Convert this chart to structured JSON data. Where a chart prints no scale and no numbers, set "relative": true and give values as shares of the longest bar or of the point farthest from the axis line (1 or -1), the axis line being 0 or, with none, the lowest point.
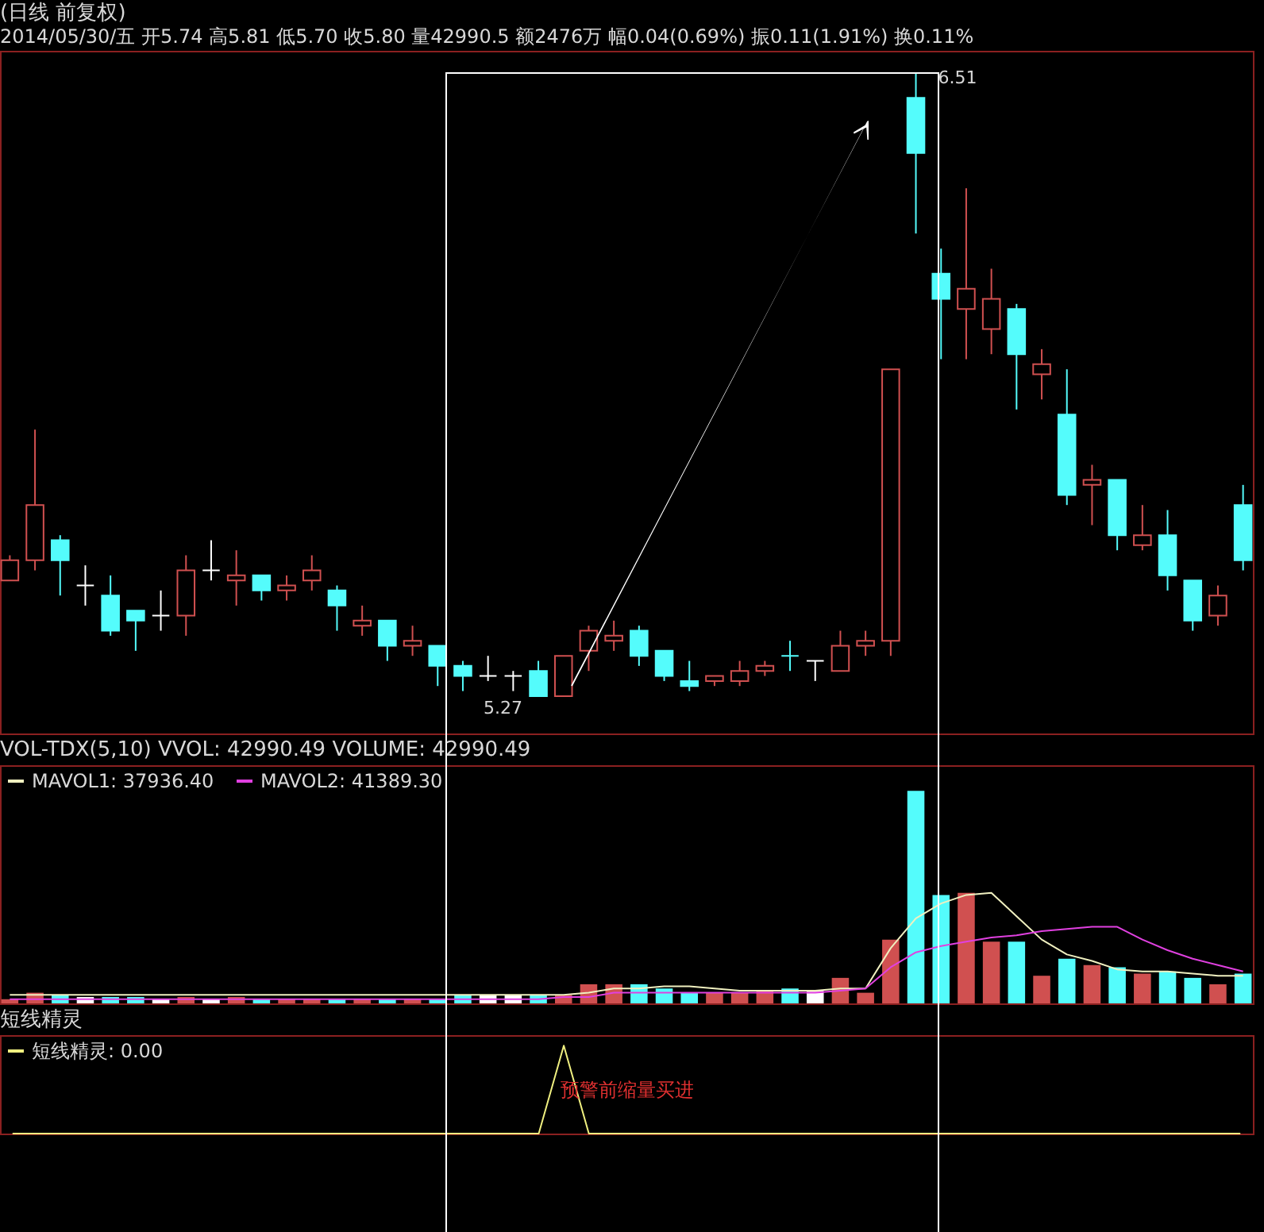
{
  "chart_data": [
    {
      "type": "candlestick",
      "title": "(日线 前复权)",
      "subtitle": "2014/05/30/五 开5.74 高5.81 低5.70 收5.80 量42990.5 额2476万 幅0.04(0.69%) 振0.11(1.91%) 换0.11%",
      "tick_labels": false,
      "categories": [
        null,
        null,
        null,
        null,
        null,
        null,
        null,
        null,
        null,
        null,
        null,
        null,
        null,
        null,
        null,
        null,
        null,
        null,
        null,
        null,
        null,
        null,
        null,
        null,
        null,
        null,
        null,
        null,
        null,
        null,
        null,
        null,
        null,
        null,
        null,
        null,
        null,
        null,
        null,
        null,
        null,
        null,
        null,
        null,
        null,
        null,
        null,
        null,
        null,
        null
      ],
      "ohlc": [
        [
          5.5,
          5.55,
          5.5,
          5.54
        ],
        [
          5.54,
          5.8,
          5.52,
          5.65
        ],
        [
          5.58,
          5.59,
          5.47,
          5.54
        ],
        [
          5.49,
          5.53,
          5.45,
          5.49
        ],
        [
          5.47,
          5.51,
          5.39,
          5.4
        ],
        [
          5.44,
          5.44,
          5.36,
          5.42
        ],
        [
          5.43,
          5.48,
          5.4,
          5.43
        ],
        [
          5.43,
          5.55,
          5.39,
          5.52
        ],
        [
          5.52,
          5.58,
          5.5,
          5.52
        ],
        [
          5.5,
          5.56,
          5.45,
          5.51
        ],
        [
          5.51,
          5.51,
          5.46,
          5.48
        ],
        [
          5.48,
          5.51,
          5.46,
          5.49
        ],
        [
          5.5,
          5.55,
          5.48,
          5.52
        ],
        [
          5.48,
          5.49,
          5.4,
          5.45
        ],
        [
          5.41,
          5.45,
          5.39,
          5.42
        ],
        [
          5.42,
          5.42,
          5.34,
          5.37
        ],
        [
          5.37,
          5.41,
          5.35,
          5.38
        ],
        [
          5.37,
          5.37,
          5.29,
          5.33
        ],
        [
          5.33,
          5.34,
          5.28,
          5.31
        ],
        [
          5.31,
          5.35,
          5.3,
          5.31
        ],
        [
          5.31,
          5.32,
          5.28,
          5.31
        ],
        [
          5.32,
          5.34,
          5.27,
          5.27
        ],
        [
          5.27,
          5.35,
          5.27,
          5.35
        ],
        [
          5.36,
          5.41,
          5.32,
          5.4
        ],
        [
          5.38,
          5.42,
          5.36,
          5.39
        ],
        [
          5.4,
          5.41,
          5.33,
          5.35
        ],
        [
          5.36,
          5.36,
          5.3,
          5.31
        ],
        [
          5.3,
          5.34,
          5.28,
          5.29
        ],
        [
          5.3,
          5.31,
          5.29,
          5.31
        ],
        [
          5.3,
          5.34,
          5.29,
          5.32
        ],
        [
          5.32,
          5.34,
          5.31,
          5.33
        ],
        [
          5.35,
          5.38,
          5.32,
          5.35
        ],
        [
          5.34,
          5.34,
          5.3,
          5.34
        ],
        [
          5.32,
          5.4,
          5.32,
          5.37
        ],
        [
          5.37,
          5.4,
          5.35,
          5.38
        ],
        [
          5.38,
          5.92,
          5.35,
          5.92
        ],
        [
          6.46,
          6.51,
          6.19,
          6.35
        ],
        [
          6.11,
          6.16,
          5.94,
          6.06
        ],
        [
          6.04,
          6.28,
          5.94,
          6.08
        ],
        [
          6.0,
          6.12,
          5.95,
          6.06
        ],
        [
          6.04,
          6.05,
          5.84,
          5.95
        ],
        [
          5.91,
          5.96,
          5.86,
          5.93
        ],
        [
          5.83,
          5.92,
          5.65,
          5.67
        ],
        [
          5.69,
          5.73,
          5.61,
          5.7
        ],
        [
          5.7,
          5.7,
          5.56,
          5.59
        ],
        [
          5.57,
          5.65,
          5.56,
          5.59
        ],
        [
          5.59,
          5.64,
          5.48,
          5.51
        ],
        [
          5.5,
          5.5,
          5.4,
          5.42
        ],
        [
          5.43,
          5.49,
          5.41,
          5.47
        ],
        [
          5.65,
          5.69,
          5.52,
          5.54
        ]
      ],
      "colors": [
        "#d05050",
        "#d05050",
        "#54fcfc",
        "#ffffff",
        "#54fcfc",
        "#54fcfc",
        "#ffffff",
        "#d05050",
        "#ffffff",
        "#d05050",
        "#54fcfc",
        "#d05050",
        "#d05050",
        "#54fcfc",
        "#d05050",
        "#54fcfc",
        "#d05050",
        "#54fcfc",
        "#54fcfc",
        "#ffffff",
        "#ffffff",
        "#54fcfc",
        "#d05050",
        "#d05050",
        "#d05050",
        "#54fcfc",
        "#54fcfc",
        "#54fcfc",
        "#d05050",
        "#d05050",
        "#d05050",
        "#54fcfc",
        "#ffffff",
        "#d05050",
        "#d05050",
        "#d05050",
        "#54fcfc",
        "#54fcfc",
        "#d05050",
        "#d05050",
        "#54fcfc",
        "#d05050",
        "#54fcfc",
        "#d05050",
        "#54fcfc",
        "#d05050",
        "#54fcfc",
        "#54fcfc",
        "#d05050",
        "#54fcfc"
      ],
      "annotations": [
        "6.51",
        "5.27"
      ]
    },
    {
      "type": "bar",
      "relative": true,
      "title": "VOL-TDX(5,10) VVOL: 42990.49 VOLUME: 42990.49",
      "tick_labels": false,
      "legend": "top left",
      "categories": [
        null,
        null,
        null,
        null,
        null,
        null,
        null,
        null,
        null,
        null,
        null,
        null,
        null,
        null,
        null,
        null,
        null,
        null,
        null,
        null,
        null,
        null,
        null,
        null,
        null,
        null,
        null,
        null,
        null,
        null,
        null,
        null,
        null,
        null,
        null,
        null,
        null,
        null,
        null,
        null,
        null,
        null,
        null,
        null,
        null,
        null,
        null,
        null,
        null,
        null
      ],
      "series": [
        {
          "type": "bar",
          "colors": [
            "#d05050",
            "#d05050",
            "#54fcfc",
            "#ffffff",
            "#54fcfc",
            "#54fcfc",
            "#ffffff",
            "#d05050",
            "#ffffff",
            "#d05050",
            "#54fcfc",
            "#d05050",
            "#d05050",
            "#54fcfc",
            "#d05050",
            "#54fcfc",
            "#d05050",
            "#54fcfc",
            "#54fcfc",
            "#ffffff",
            "#ffffff",
            "#54fcfc",
            "#d05050",
            "#d05050",
            "#d05050",
            "#54fcfc",
            "#54fcfc",
            "#54fcfc",
            "#d05050",
            "#d05050",
            "#d05050",
            "#54fcfc",
            "#ffffff",
            "#d05050",
            "#d05050",
            "#d05050",
            "#54fcfc",
            "#54fcfc",
            "#d05050",
            "#d05050",
            "#54fcfc",
            "#d05050",
            "#54fcfc",
            "#d05050",
            "#54fcfc",
            "#d05050",
            "#54fcfc",
            "#54fcfc",
            "#d05050",
            "#54fcfc"
          ],
          "values": [
            0.02,
            0.05,
            0.04,
            0.03,
            0.03,
            0.03,
            0.02,
            0.03,
            0.02,
            0.03,
            0.02,
            0.02,
            0.02,
            0.02,
            0.02,
            0.02,
            0.02,
            0.02,
            0.04,
            0.04,
            0.04,
            0.04,
            0.04,
            0.09,
            0.09,
            0.09,
            0.07,
            0.05,
            0.05,
            0.05,
            0.06,
            0.07,
            0.06,
            0.12,
            0.05,
            0.3,
            1,
            0.51,
            0.52,
            0.29,
            0.29,
            0.13,
            0.21,
            0.18,
            0.17,
            0.14,
            0.15,
            0.12,
            0.09,
            0.14
          ]
        },
        {
          "type": "line",
          "name": "MAVOL1: 37936.40",
          "color": "#f0f0c0",
          "values": [
            0.04,
            0.04,
            0.04,
            0.04,
            0.04,
            0.04,
            0.04,
            0.04,
            0.04,
            0.04,
            0.04,
            0.04,
            0.04,
            0.04,
            0.04,
            0.04,
            0.04,
            0.04,
            0.04,
            0.04,
            0.04,
            0.04,
            0.04,
            0.05,
            0.07,
            0.07,
            0.08,
            0.08,
            0.07,
            0.06,
            0.06,
            0.06,
            0.06,
            0.07,
            0.07,
            0.26,
            0.4,
            0.47,
            0.51,
            0.52,
            0.41,
            0.3,
            0.23,
            0.2,
            0.16,
            0.15,
            0.15,
            0.14,
            0.13,
            0.13
          ]
        },
        {
          "type": "line",
          "name": "MAVOL2: 41389.30",
          "color": "#e040e0",
          "values": [
            0.02,
            0.02,
            0.02,
            0.02,
            0.02,
            0.02,
            0.02,
            0.02,
            0.02,
            0.02,
            0.02,
            0.02,
            0.02,
            0.02,
            0.02,
            0.02,
            0.02,
            0.02,
            0.02,
            0.02,
            0.02,
            0.02,
            0.03,
            0.03,
            0.05,
            0.05,
            0.05,
            0.05,
            0.05,
            0.05,
            0.05,
            0.05,
            0.05,
            0.06,
            0.07,
            0.17,
            0.24,
            0.27,
            0.29,
            0.31,
            0.32,
            0.34,
            0.35,
            0.36,
            0.36,
            0.3,
            0.25,
            0.21,
            0.18,
            0.15
          ]
        }
      ]
    },
    {
      "type": "line",
      "relative": true,
      "title": "短线精灵",
      "tick_labels": false,
      "legend": "top left",
      "annotations": [
        "预警前缩量买进"
      ],
      "categories": [
        null,
        null,
        null,
        null,
        null,
        null,
        null,
        null,
        null,
        null,
        null,
        null,
        null,
        null,
        null,
        null,
        null,
        null,
        null,
        null,
        null,
        null,
        null,
        null,
        null,
        null,
        null,
        null,
        null,
        null,
        null,
        null,
        null,
        null,
        null,
        null,
        null,
        null,
        null,
        null,
        null,
        null,
        null,
        null,
        null,
        null,
        null,
        null,
        null,
        null
      ],
      "series": [
        {
          "name": "短线精灵: 0.00",
          "color": "#f0f080",
          "values": [
            0,
            0,
            0,
            0,
            0,
            0,
            0,
            0,
            0,
            0,
            0,
            0,
            0,
            0,
            0,
            0,
            0,
            0,
            0,
            0,
            0,
            0,
            1,
            0,
            0,
            0,
            0,
            0,
            0,
            0,
            0,
            0,
            0,
            0,
            0,
            0,
            0,
            0,
            0,
            0,
            0,
            0,
            0,
            0,
            0,
            0,
            0,
            0,
            0,
            0
          ]
        }
      ]
    }
  ]
}
